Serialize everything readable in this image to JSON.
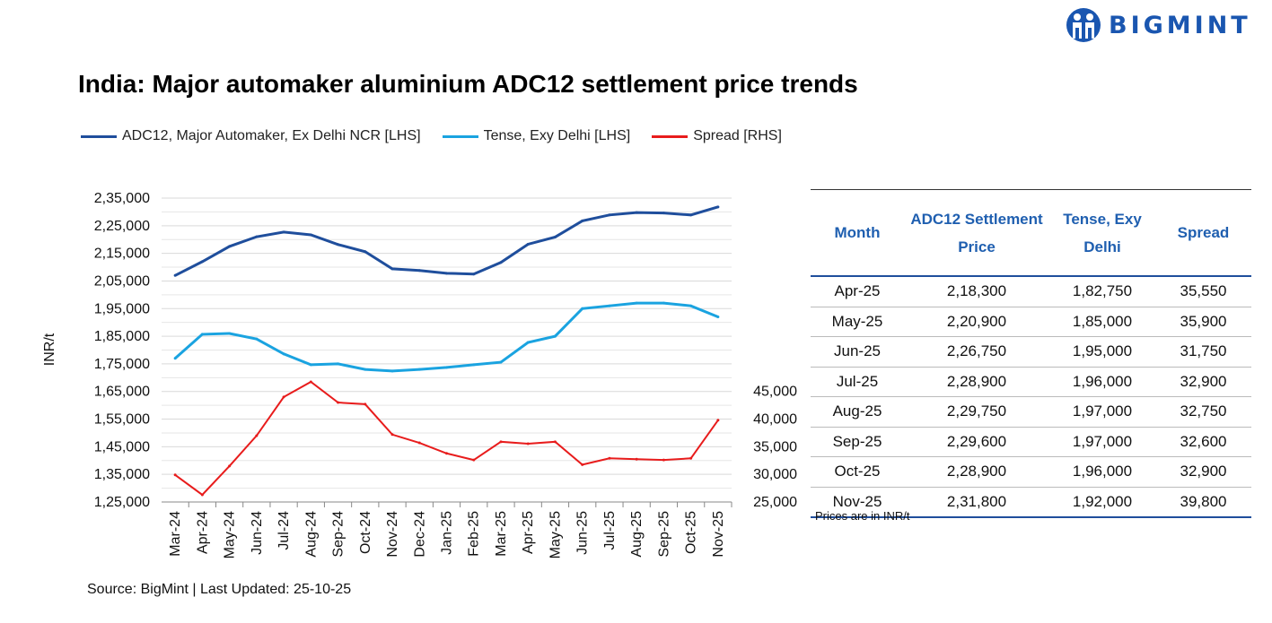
{
  "brand": "BIGMINT",
  "title": "India: Major automaker aluminium ADC12 settlement price trends",
  "source": "Source: BigMint | Last Updated: 25-10-25",
  "colors": {
    "adc12": "#1f4e9c",
    "tense": "#1aa3e0",
    "spread": "#e81c1c",
    "table_header": "#1f5fb0",
    "brand": "#1a56b0"
  },
  "chart_data": {
    "type": "line",
    "title": "India: Major automaker aluminium ADC12 settlement price trends",
    "ylabel": "INR/t",
    "x": [
      "Mar-24",
      "Apr-24",
      "May-24",
      "Jun-24",
      "Jul-24",
      "Aug-24",
      "Sep-24",
      "Oct-24",
      "Nov-24",
      "Dec-24",
      "Jan-25",
      "Feb-25",
      "Mar-25",
      "Apr-25",
      "May-25",
      "Jun-25",
      "Jul-25",
      "Aug-25",
      "Sep-25",
      "Oct-25",
      "Nov-25"
    ],
    "ylim": [
      125000,
      235000
    ],
    "yticks": [
      "1,25,000",
      "1,35,000",
      "1,45,000",
      "1,55,000",
      "1,65,000",
      "1,75,000",
      "1,85,000",
      "1,95,000",
      "2,05,000",
      "2,15,000",
      "2,25,000",
      "2,35,000"
    ],
    "y2lim": [
      25000,
      80000
    ],
    "y2ticks": [
      "25,000",
      "30,000",
      "35,000",
      "40,000",
      "45,000"
    ],
    "grid": true,
    "legend_position": "top",
    "series": [
      {
        "name": "ADC12, Major Automaker, Ex Delhi NCR [LHS]",
        "axis": "left",
        "values": [
          207000,
          212000,
          217500,
          221000,
          222700,
          221700,
          218200,
          215600,
          209400,
          208800,
          207800,
          207500,
          211700,
          218300,
          220900,
          226750,
          228900,
          229750,
          229600,
          228900,
          231800
        ]
      },
      {
        "name": "Tense, Exy Delhi [LHS]",
        "axis": "left",
        "values": [
          177000,
          185700,
          186000,
          184000,
          178600,
          174700,
          175000,
          173000,
          172400,
          173000,
          173700,
          174700,
          175600,
          182750,
          185000,
          195000,
          196000,
          197000,
          197000,
          196000,
          192000
        ]
      },
      {
        "name": "Spread [RHS]",
        "axis": "right",
        "values": [
          29900,
          26300,
          31500,
          37000,
          44000,
          46750,
          43000,
          42700,
          37200,
          35700,
          33800,
          32600,
          35900,
          35550,
          35900,
          31750,
          32900,
          32750,
          32600,
          32900,
          39800
        ]
      }
    ]
  },
  "table": {
    "headers": [
      "Month",
      "ADC12 Settlement Price",
      "Tense, Exy Delhi",
      "Spread"
    ],
    "rows": [
      [
        "Apr-25",
        "2,18,300",
        "1,82,750",
        "35,550"
      ],
      [
        "May-25",
        "2,20,900",
        "1,85,000",
        "35,900"
      ],
      [
        "Jun-25",
        "2,26,750",
        "1,95,000",
        "31,750"
      ],
      [
        "Jul-25",
        "2,28,900",
        "1,96,000",
        "32,900"
      ],
      [
        "Aug-25",
        "2,29,750",
        "1,97,000",
        "32,750"
      ],
      [
        "Sep-25",
        "2,29,600",
        "1,97,000",
        "32,600"
      ],
      [
        "Oct-25",
        "2,28,900",
        "1,96,000",
        "32,900"
      ],
      [
        "Nov-25",
        "2,31,800",
        "1,92,000",
        "39,800"
      ]
    ],
    "note": "Prices are in INR/t"
  }
}
